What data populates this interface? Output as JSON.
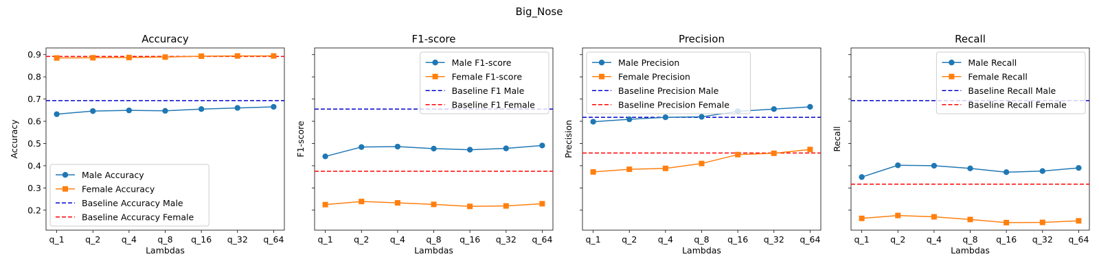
{
  "figure": {
    "suptitle": "Big_Nose"
  },
  "chart_data": [
    {
      "type": "line",
      "title": "Accuracy",
      "xlabel": "Lambdas",
      "ylabel": "Accuracy",
      "categories": [
        "q_1",
        "q_2",
        "q_4",
        "q_8",
        "q_16",
        "q_32",
        "q_64"
      ],
      "ylim": [
        0.11,
        0.93
      ],
      "yticks": [
        "0.2",
        "0.3",
        "0.4",
        "0.5",
        "0.6",
        "0.7",
        "0.8",
        "0.9"
      ],
      "show_ytick_labels": true,
      "legend": "lower-left",
      "series": [
        {
          "name": "Male Accuracy",
          "marker": "circle",
          "color": "#1f77b4",
          "values": [
            0.632,
            0.646,
            0.649,
            0.647,
            0.655,
            0.66,
            0.665
          ]
        },
        {
          "name": "Female Accuracy",
          "marker": "square",
          "color": "#ff7f0e",
          "values": [
            0.885,
            0.886,
            0.887,
            0.889,
            0.893,
            0.894,
            0.894
          ]
        }
      ],
      "baselines": [
        {
          "name": "Baseline Accuracy Male",
          "color": "#0000cc",
          "value": 0.693
        },
        {
          "name": "Baseline Accuracy Female",
          "color": "#ff0000",
          "value": 0.892
        }
      ]
    },
    {
      "type": "line",
      "title": "F1-score",
      "xlabel": "Lambdas",
      "ylabel": "F1-score",
      "categories": [
        "q_1",
        "q_2",
        "q_4",
        "q_8",
        "q_16",
        "q_32",
        "q_64"
      ],
      "ylim": [
        0.11,
        0.93
      ],
      "yticks": [
        "0.2",
        "0.3",
        "0.4",
        "0.5",
        "0.6",
        "0.7",
        "0.8",
        "0.9"
      ],
      "show_ytick_labels": false,
      "legend": "upper-right",
      "series": [
        {
          "name": "Male F1-score",
          "marker": "circle",
          "color": "#1f77b4",
          "values": [
            0.442,
            0.484,
            0.486,
            0.477,
            0.472,
            0.478,
            0.491
          ]
        },
        {
          "name": "Female F1-score",
          "marker": "square",
          "color": "#ff7f0e",
          "values": [
            0.225,
            0.239,
            0.233,
            0.226,
            0.217,
            0.219,
            0.229
          ]
        }
      ],
      "baselines": [
        {
          "name": "Baseline F1 Male",
          "color": "#0000cc",
          "value": 0.655
        },
        {
          "name": "Baseline F1 Female",
          "color": "#ff0000",
          "value": 0.375
        }
      ]
    },
    {
      "type": "line",
      "title": "Precision",
      "xlabel": "Lambdas",
      "ylabel": "Precision",
      "categories": [
        "q_1",
        "q_2",
        "q_4",
        "q_8",
        "q_16",
        "q_32",
        "q_64"
      ],
      "ylim": [
        0.11,
        0.93
      ],
      "yticks": [
        "0.2",
        "0.3",
        "0.4",
        "0.5",
        "0.6",
        "0.7",
        "0.8",
        "0.9"
      ],
      "show_ytick_labels": false,
      "legend": "upper-left",
      "series": [
        {
          "name": "Male Precision",
          "marker": "circle",
          "color": "#1f77b4",
          "values": [
            0.598,
            0.609,
            0.618,
            0.62,
            0.645,
            0.655,
            0.665
          ]
        },
        {
          "name": "Female Precision",
          "marker": "square",
          "color": "#ff7f0e",
          "values": [
            0.372,
            0.384,
            0.388,
            0.41,
            0.45,
            0.456,
            0.473
          ]
        }
      ],
      "baselines": [
        {
          "name": "Baseline Precision Male",
          "color": "#0000cc",
          "value": 0.618
        },
        {
          "name": "Baseline Precision Female",
          "color": "#ff0000",
          "value": 0.457
        }
      ]
    },
    {
      "type": "line",
      "title": "Recall",
      "xlabel": "Lambdas",
      "ylabel": "Recall",
      "categories": [
        "q_1",
        "q_2",
        "q_4",
        "q_8",
        "q_16",
        "q_32",
        "q_64"
      ],
      "ylim": [
        0.11,
        0.93
      ],
      "yticks": [
        "0.2",
        "0.3",
        "0.4",
        "0.5",
        "0.6",
        "0.7",
        "0.8",
        "0.9"
      ],
      "show_ytick_labels": false,
      "legend": "upper-right",
      "series": [
        {
          "name": "Male Recall",
          "marker": "circle",
          "color": "#1f77b4",
          "values": [
            0.349,
            0.402,
            0.4,
            0.388,
            0.371,
            0.376,
            0.39
          ]
        },
        {
          "name": "Female Recall",
          "marker": "square",
          "color": "#ff7f0e",
          "values": [
            0.163,
            0.176,
            0.17,
            0.158,
            0.144,
            0.145,
            0.152
          ]
        }
      ],
      "baselines": [
        {
          "name": "Baseline Recall Male",
          "color": "#0000cc",
          "value": 0.693
        },
        {
          "name": "Baseline Recall Female",
          "color": "#ff0000",
          "value": 0.317
        }
      ]
    }
  ]
}
